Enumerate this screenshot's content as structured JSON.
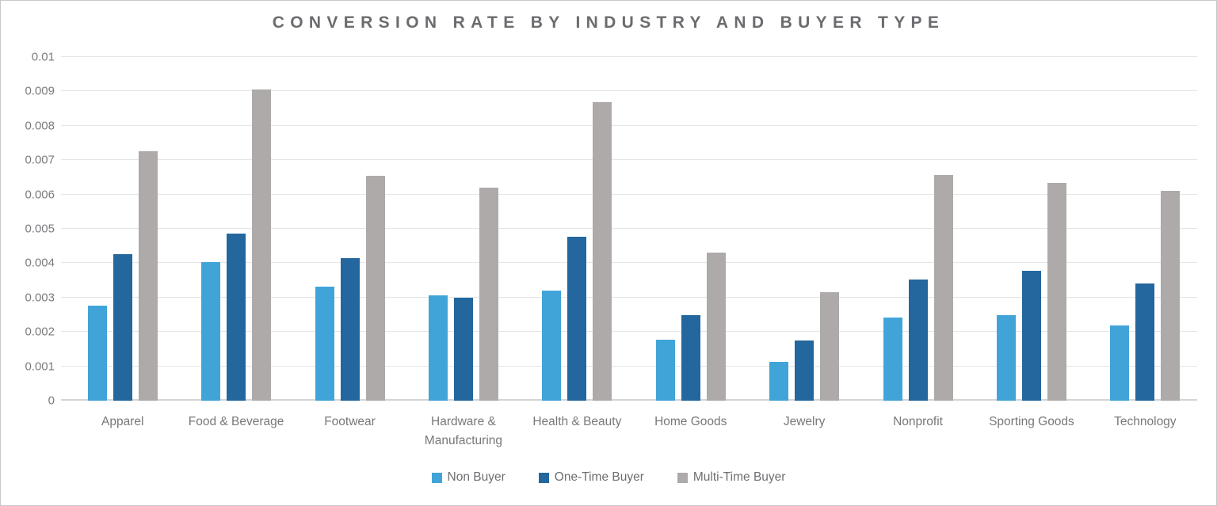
{
  "title": "CONVERSION RATE BY INDUSTRY AND BUYER TYPE",
  "colors": {
    "non_buyer": "#41a4d8",
    "one_time_buyer": "#23679e",
    "multi_time_buyer": "#aeaaaa",
    "title_text": "#6b6c6f",
    "axis_text": "#7b7c7f",
    "gridline": "#e6e6e6",
    "baseline": "#d4d4d4"
  },
  "chart_data": {
    "type": "bar",
    "title": "Conversion Rate by Industry and Buyer Type",
    "xlabel": "",
    "ylabel": "",
    "ylim": [
      0,
      0.01
    ],
    "grid": true,
    "legend_position": "bottom",
    "y_ticks": [
      {
        "value": 0,
        "label": "0"
      },
      {
        "value": 0.001,
        "label": "0.001"
      },
      {
        "value": 0.002,
        "label": "0.002"
      },
      {
        "value": 0.003,
        "label": "0.003"
      },
      {
        "value": 0.004,
        "label": "0.004"
      },
      {
        "value": 0.005,
        "label": "0.005"
      },
      {
        "value": 0.006,
        "label": "0.006"
      },
      {
        "value": 0.007,
        "label": "0.007"
      },
      {
        "value": 0.008,
        "label": "0.008"
      },
      {
        "value": 0.009,
        "label": "0.009"
      },
      {
        "value": 0.01,
        "label": "0.01"
      }
    ],
    "categories": [
      "Apparel",
      "Food & Beverage",
      "Footwear",
      "Hardware & Manufacturing",
      "Health & Beauty",
      "Home Goods",
      "Jewelry",
      "Nonprofit",
      "Sporting Goods",
      "Technology"
    ],
    "series": [
      {
        "name": "Non Buyer",
        "color": "#41a4d8",
        "values": [
          0.00276,
          0.00404,
          0.00331,
          0.00307,
          0.00321,
          0.00178,
          0.00113,
          0.00241,
          0.0025,
          0.00219
        ]
      },
      {
        "name": "One-Time Buyer",
        "color": "#23679e",
        "values": [
          0.00426,
          0.00487,
          0.00414,
          0.00299,
          0.00478,
          0.0025,
          0.00174,
          0.00352,
          0.00378,
          0.0034
        ]
      },
      {
        "name": "Multi-Time Buyer",
        "color": "#aeaaaa",
        "values": [
          0.00725,
          0.00905,
          0.00655,
          0.0062,
          0.00868,
          0.00431,
          0.00316,
          0.00656,
          0.00634,
          0.0061
        ]
      }
    ]
  }
}
